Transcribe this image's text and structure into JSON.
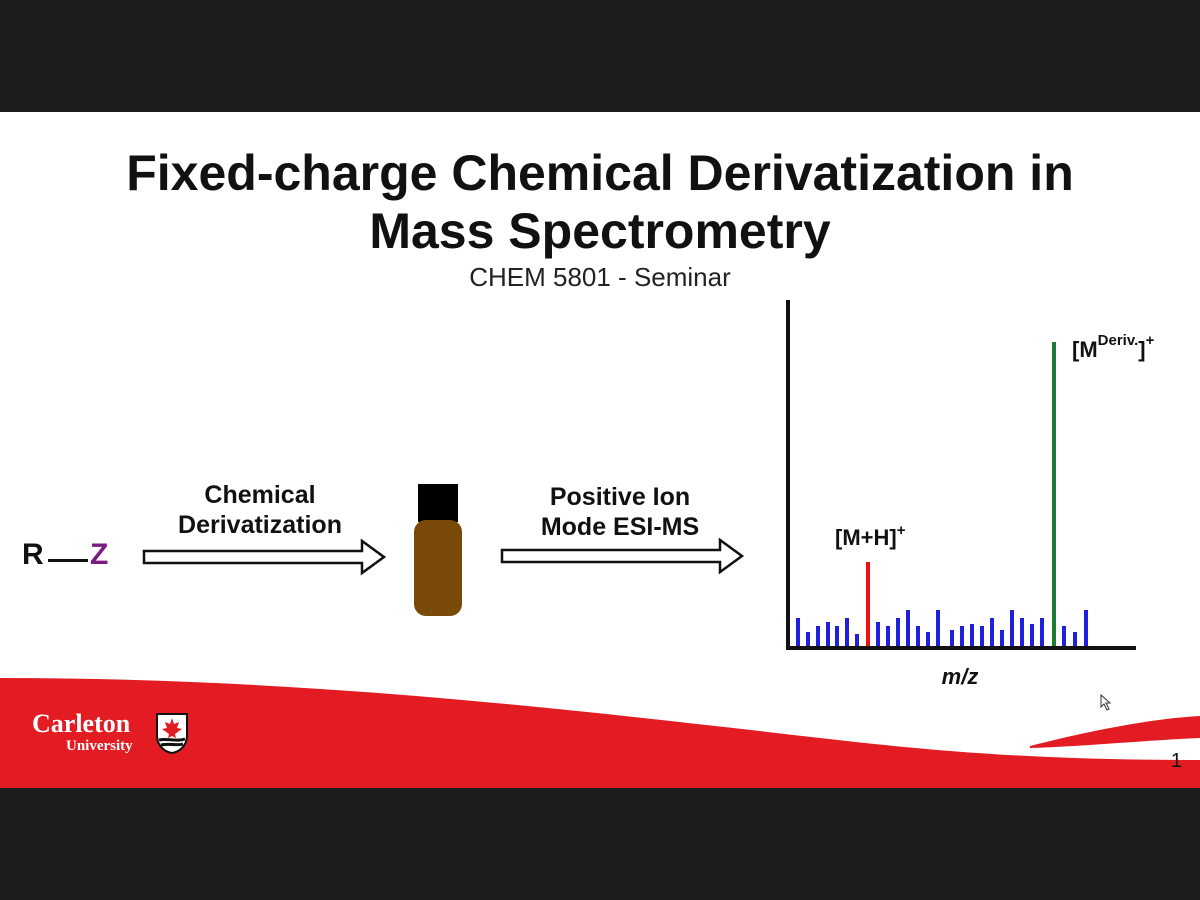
{
  "slide": {
    "title_line1": "Fixed-charge Chemical Derivatization in",
    "title_line2": "Mass Spectrometry",
    "subtitle": "CHEM 5801 - Seminar",
    "slide_number": "1"
  },
  "scheme": {
    "r_label": "R",
    "z_label": "Z",
    "step1_line1": "Chemical",
    "step1_line2": "Derivatization",
    "step2_line1": "Positive Ion",
    "step2_line2": "Mode ESI-MS"
  },
  "spectrum": {
    "peak_mh_label": "[M+H]",
    "peak_mh_sup": "+",
    "peak_deriv_label": "[M",
    "peak_deriv_sup1": "Deriv.",
    "peak_deriv_close": "]",
    "peak_deriv_sup2": "+",
    "xlabel": "m/z"
  },
  "logo": {
    "name": "Carleton",
    "sub": "University"
  },
  "colors": {
    "background": "#1c1c1c",
    "brand_red": "#e31b23",
    "z_purple": "#7b1a82",
    "vial_brown": "#7a4a0a",
    "noise_blue": "#1f1fe0",
    "mh_red": "#ee1111",
    "deriv_green": "#1a7d33"
  }
}
